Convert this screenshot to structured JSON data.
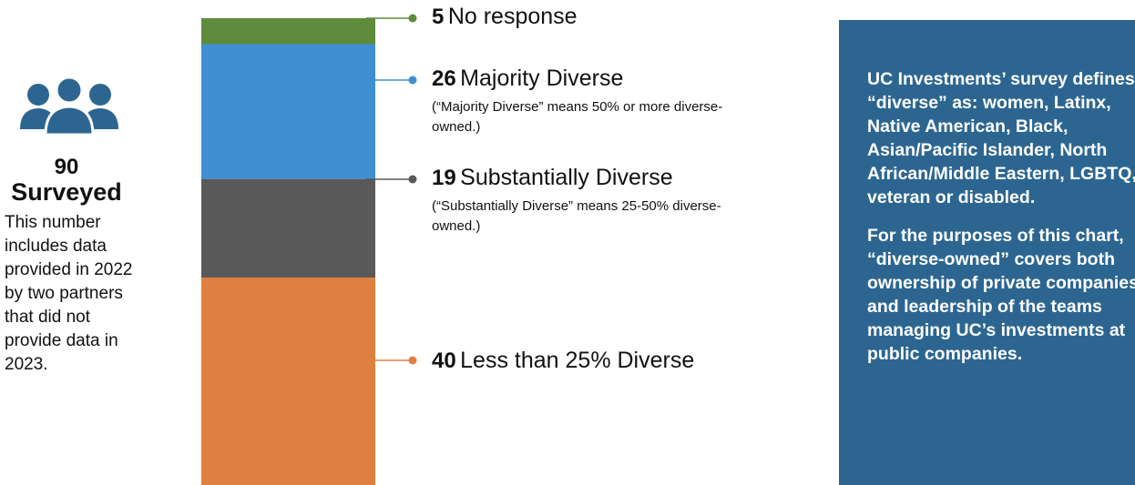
{
  "chart_data": {
    "type": "stacked-bar",
    "total": 90,
    "segments": [
      {
        "name": "No response",
        "value": 5,
        "note": "",
        "color": "#5f8b3c"
      },
      {
        "name": "Majority Diverse",
        "value": 26,
        "note": "(“Majority Diverse” means 50% or more diverse-owned.)",
        "color": "#3f8fd3"
      },
      {
        "name": "Substantially Diverse",
        "value": 19,
        "note": "(“Substantially Diverse” means 25-50% diverse-owned.)",
        "color": "#595959"
      },
      {
        "name": "Less than 25% Diverse",
        "value": 40,
        "note": "",
        "color": "#e08040"
      }
    ]
  },
  "summary": {
    "icon": "people-group-icon",
    "icon_color": "#2c6690",
    "count": "90",
    "label": "Surveyed",
    "note": "This number includes data provided in 2022 by two partners that did not provide data in 2023."
  },
  "info_box": {
    "background": "#2c6690",
    "paragraph_1": "UC Investments’ survey defines “diverse” as: women, Latinx, Native American, Black, Asian/Pacific Islander, North African/Middle Eastern, LGBTQ, veteran or disabled.",
    "paragraph_2": "For the purposes of this chart, “diverse-owned” covers both ownership of private companies and leadership of the teams managing UC’s investments at public companies."
  }
}
